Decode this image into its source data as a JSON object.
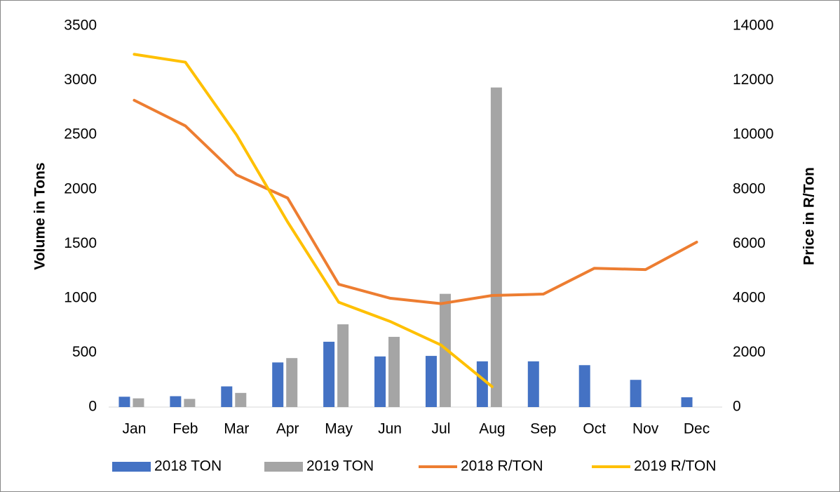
{
  "chart_data": {
    "type": "bar-line",
    "categories": [
      "Jan",
      "Feb",
      "Mar",
      "Apr",
      "May",
      "Jun",
      "Jul",
      "Aug",
      "Sep",
      "Oct",
      "Nov",
      "Dec"
    ],
    "series": [
      {
        "name": "2018 TON",
        "type": "bar",
        "color": "#4472c4",
        "values": [
          95,
          100,
          190,
          410,
          600,
          465,
          470,
          420,
          420,
          385,
          250,
          90
        ]
      },
      {
        "name": "2019 TON",
        "type": "bar",
        "color": "#a5a5a5",
        "values": [
          80,
          75,
          130,
          450,
          760,
          645,
          1040,
          2935,
          null,
          null,
          null,
          null
        ]
      },
      {
        "name": "2018 R/TON",
        "type": "line",
        "axis": "y2",
        "color": "#ed7d31",
        "values": [
          11270,
          10330,
          8530,
          7680,
          4510,
          4000,
          3800,
          4100,
          4150,
          5100,
          5050,
          6060
        ]
      },
      {
        "name": "2019 R/TON",
        "type": "line",
        "axis": "y2",
        "color": "#ffc000",
        "values": [
          12960,
          12670,
          10000,
          6800,
          3850,
          3150,
          2280,
          750,
          null,
          null,
          null,
          null
        ]
      }
    ],
    "ylabel": "Volume in Tons",
    "y2label": "Price in R/Ton",
    "ylim": [
      0,
      3500
    ],
    "yticks": [
      0,
      500,
      1000,
      1500,
      2000,
      2500,
      3000,
      3500
    ],
    "y2lim": [
      0,
      14000
    ],
    "y2ticks": [
      0,
      2000,
      4000,
      6000,
      8000,
      10000,
      12000,
      14000
    ],
    "grid": false,
    "legend": "bottom"
  }
}
